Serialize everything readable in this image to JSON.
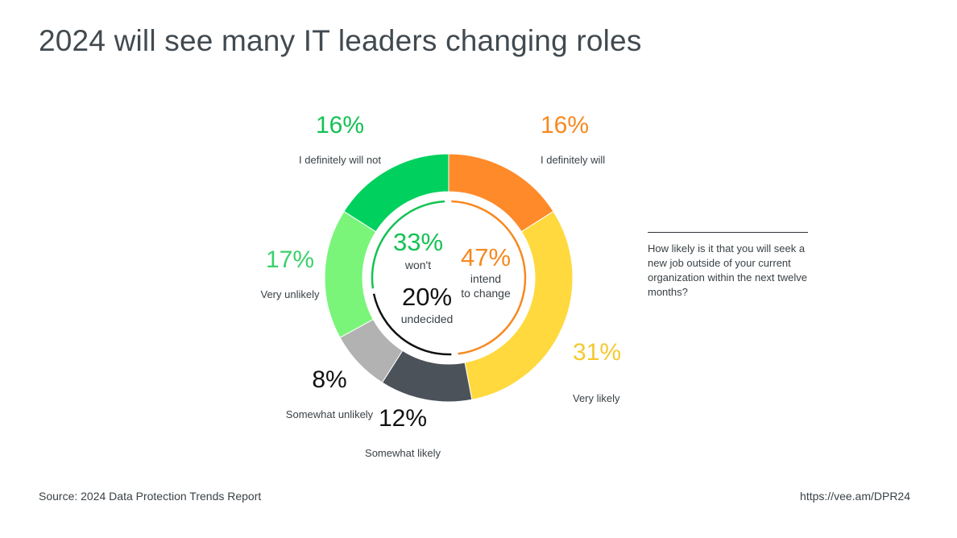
{
  "title": "2024 will see many IT leaders changing roles",
  "question": "How likely is it that you will seek a new job outside of your current organization within the next twelve months?",
  "source": "Source: 2024 Data Protection Trends Report",
  "url": "https://vee.am/DPR24",
  "chart_data": {
    "type": "pie",
    "title": "2024 will see many IT leaders changing roles",
    "categories": [
      "I definitely will",
      "Very likely",
      "Somewhat likely",
      "Somewhat unlikely",
      "Very unlikely",
      "I definitely will not"
    ],
    "values": [
      16,
      31,
      12,
      8,
      17,
      16
    ],
    "value_labels": [
      "16%",
      "31%",
      "12%",
      "8%",
      "17%",
      "16%"
    ],
    "colors": [
      "#FF8A2A",
      "#FFD93D",
      "#4B525A",
      "#B2B2B2",
      "#7AF57A",
      "#00D15E"
    ],
    "label_colors": [
      "#F7891F",
      "#F4C930",
      "#111111",
      "#111111",
      "#39D16A",
      "#13C253"
    ],
    "donut": true,
    "groups": [
      {
        "value": "33%",
        "label": "won't",
        "color": "#13C253",
        "includes": [
          "I definitely will not",
          "Very unlikely"
        ]
      },
      {
        "value": "47%",
        "label": "intend to change",
        "color": "#F7891F",
        "includes": [
          "I definitely will",
          "Very likely"
        ]
      },
      {
        "value": "20%",
        "label": "undecided",
        "color": "#111111",
        "includes": [
          "Somewhat likely",
          "Somewhat unlikely"
        ]
      }
    ],
    "groups_text": {
      "wont_value": "33%",
      "wont_label": "won't",
      "intend_value": "47%",
      "intend_label_1": "intend",
      "intend_label_2": "to change",
      "undecided_value": "20%",
      "undecided_label": "undecided"
    }
  }
}
